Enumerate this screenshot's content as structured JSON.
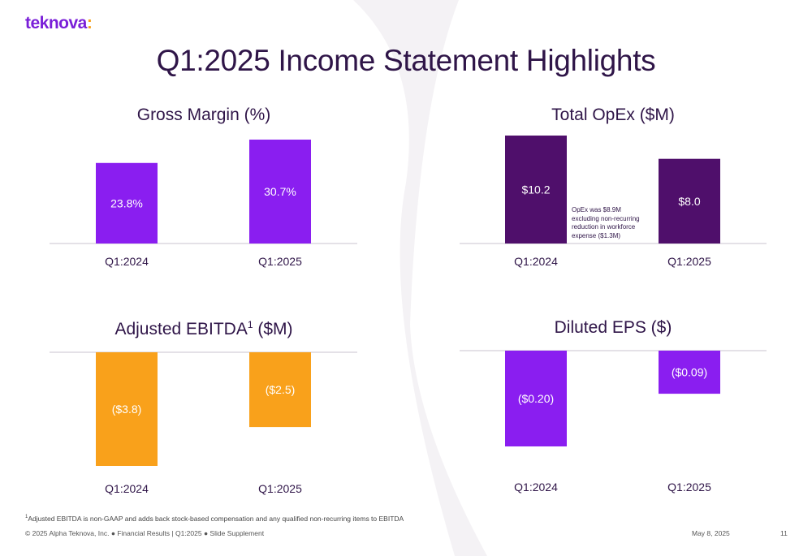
{
  "brand": {
    "name": "teknova",
    "suffix": ":"
  },
  "title": "Q1:2025 Income Statement Highlights",
  "colors": {
    "purple": "#8a1ef0",
    "dark_purple": "#4f0f6b",
    "orange": "#f9a11b",
    "axis": "#c9c3cf"
  },
  "chart_data": [
    {
      "type": "bar",
      "title": "Gross Margin (%)",
      "categories": [
        "Q1:2024",
        "Q1:2025"
      ],
      "values": [
        23.8,
        30.7
      ],
      "labels": [
        "23.8%",
        "30.7%"
      ],
      "ylim": [
        0,
        30.7
      ],
      "color": "#8a1ef0",
      "direction": "up"
    },
    {
      "type": "bar",
      "title": "Total OpEx ($M)",
      "categories": [
        "Q1:2024",
        "Q1:2025"
      ],
      "values": [
        10.2,
        8.0
      ],
      "labels": [
        "$10.2",
        "$8.0"
      ],
      "ylim": [
        0,
        10.2
      ],
      "color": "#4f0f6b",
      "direction": "up",
      "annotation": "OpEx was $8.9M excluding non-recurring reduction in workforce expense ($1.3M)"
    },
    {
      "type": "bar",
      "title": "Adjusted EBITDA",
      "title_sup": "1",
      "title_suffix": " ($M)",
      "categories": [
        "Q1:2024",
        "Q1:2025"
      ],
      "values": [
        -3.8,
        -2.5
      ],
      "labels": [
        "($3.8)",
        "($2.5)"
      ],
      "ylim": [
        -3.8,
        0
      ],
      "color": "#f9a11b",
      "direction": "down"
    },
    {
      "type": "bar",
      "title": "Diluted EPS ($)",
      "categories": [
        "Q1:2024",
        "Q1:2025"
      ],
      "values": [
        -0.2,
        -0.09
      ],
      "labels": [
        "($0.20)",
        "($0.09)"
      ],
      "ylim": [
        -0.2,
        0
      ],
      "color": "#8a1ef0",
      "direction": "down"
    }
  ],
  "footnote": {
    "sup": "1",
    "text": "Adjusted EBITDA is non-GAAP and adds back stock-based compensation and any qualified non-recurring items to EBITDA"
  },
  "footer": {
    "text": "© 2025 Alpha Teknova, Inc.  ●  Financial Results | Q1:2025  ●  Slide Supplement",
    "date": "May 8, 2025",
    "page": "11"
  }
}
